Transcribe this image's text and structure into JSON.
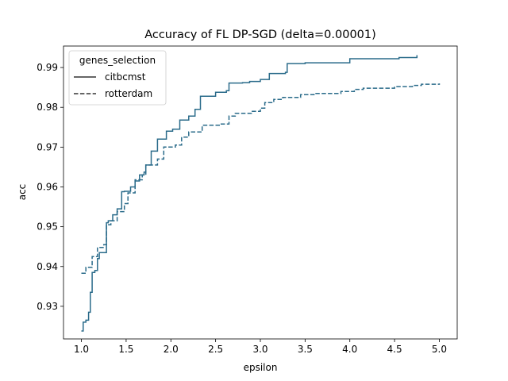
{
  "chart_data": {
    "type": "line",
    "title": "Accuracy of FL DP-SGD (delta=0.00001)",
    "xlabel": "epsilon",
    "ylabel": "acc",
    "xlim": [
      0.8,
      5.2
    ],
    "ylim": [
      0.9218,
      0.9954
    ],
    "xticks": [
      1.0,
      1.5,
      2.0,
      2.5,
      3.0,
      3.5,
      4.0,
      4.5,
      5.0
    ],
    "xtick_labels": [
      "1.0",
      "1.5",
      "2.0",
      "2.5",
      "3.0",
      "3.5",
      "4.0",
      "4.5",
      "5.0"
    ],
    "yticks": [
      0.93,
      0.94,
      0.95,
      0.96,
      0.97,
      0.98,
      0.99
    ],
    "ytick_labels": [
      "0.93",
      "0.94",
      "0.95",
      "0.96",
      "0.97",
      "0.98",
      "0.99"
    ],
    "grid": false,
    "legend": {
      "title": "genes_selection",
      "position": "top-left"
    },
    "series": [
      {
        "name": "citbcmst",
        "style": "solid",
        "color": "#2a6b8a",
        "x": [
          1.0,
          1.02,
          1.05,
          1.08,
          1.1,
          1.12,
          1.15,
          1.18,
          1.2,
          1.25,
          1.28,
          1.3,
          1.35,
          1.4,
          1.45,
          1.48,
          1.55,
          1.6,
          1.65,
          1.7,
          1.72,
          1.78,
          1.85,
          1.95,
          2.02,
          2.1,
          2.2,
          2.27,
          2.33,
          2.5,
          2.62,
          2.65,
          2.8,
          2.88,
          3.0,
          3.1,
          3.28,
          3.3,
          3.5,
          4.0,
          4.55,
          4.75
        ],
        "y": [
          0.9238,
          0.926,
          0.9265,
          0.9285,
          0.9335,
          0.9385,
          0.939,
          0.942,
          0.9435,
          0.9435,
          0.951,
          0.9515,
          0.953,
          0.9545,
          0.9588,
          0.9589,
          0.96,
          0.9615,
          0.963,
          0.9637,
          0.9655,
          0.969,
          0.972,
          0.974,
          0.9745,
          0.9768,
          0.9778,
          0.9795,
          0.9828,
          0.9838,
          0.9842,
          0.9861,
          0.9862,
          0.9865,
          0.987,
          0.9885,
          0.9888,
          0.991,
          0.9912,
          0.9922,
          0.9925,
          0.9931
        ]
      },
      {
        "name": "rotterdam",
        "style": "dashed",
        "color": "#2a6b8a",
        "x": [
          1.0,
          1.05,
          1.12,
          1.18,
          1.25,
          1.28,
          1.33,
          1.4,
          1.48,
          1.52,
          1.6,
          1.68,
          1.72,
          1.85,
          1.92,
          2.05,
          2.12,
          2.2,
          2.35,
          2.55,
          2.65,
          2.72,
          2.9,
          3.0,
          3.05,
          3.15,
          3.25,
          3.45,
          3.6,
          3.9,
          4.05,
          4.15,
          4.5,
          4.7,
          4.8,
          5.0
        ],
        "y": [
          0.9383,
          0.9398,
          0.9425,
          0.9448,
          0.9455,
          0.9505,
          0.9515,
          0.9538,
          0.9558,
          0.9585,
          0.9618,
          0.963,
          0.9655,
          0.967,
          0.97,
          0.9705,
          0.9725,
          0.9738,
          0.9755,
          0.9758,
          0.9778,
          0.9785,
          0.979,
          0.9798,
          0.9812,
          0.982,
          0.9825,
          0.9832,
          0.9835,
          0.984,
          0.9845,
          0.9848,
          0.9852,
          0.9855,
          0.9858,
          0.986
        ]
      }
    ]
  }
}
